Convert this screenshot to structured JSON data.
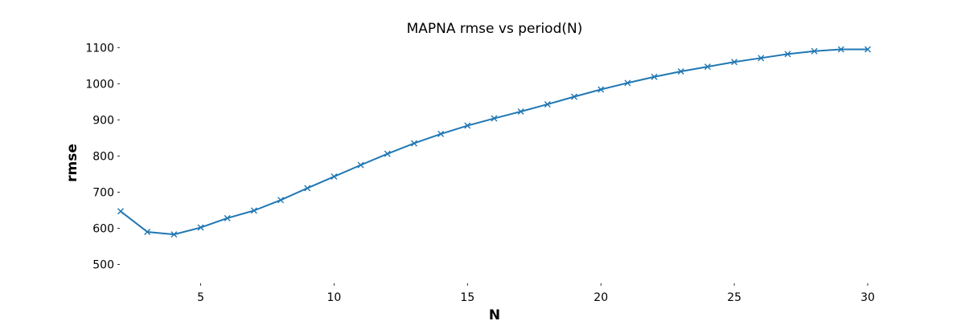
{
  "chart_data": {
    "type": "line",
    "title": "MAPNA rmse vs period(N)",
    "xlabel": "N",
    "ylabel": "rmse",
    "xlim": [
      2,
      30
    ],
    "ylim": [
      450,
      1125
    ],
    "x_ticks": [
      5,
      10,
      15,
      20,
      25,
      30
    ],
    "y_ticks": [
      500,
      600,
      700,
      800,
      900,
      1000,
      1100
    ],
    "grid": false,
    "marker": "x",
    "line_color": "#1f77b4",
    "series": [
      {
        "x": [
          2,
          3,
          4,
          5,
          6,
          7,
          8,
          9,
          10,
          11,
          12,
          13,
          14,
          15,
          16,
          17,
          18,
          19,
          20,
          21,
          22,
          23,
          24,
          25,
          26,
          27,
          28,
          29,
          30
        ],
        "values": [
          647,
          590,
          583,
          602,
          628,
          649,
          678,
          711,
          743,
          775,
          806,
          835,
          861,
          884,
          904,
          923,
          943,
          964,
          984,
          1002,
          1019,
          1034,
          1047,
          1060,
          1071,
          1082,
          1090,
          1095,
          1095
        ]
      }
    ]
  }
}
